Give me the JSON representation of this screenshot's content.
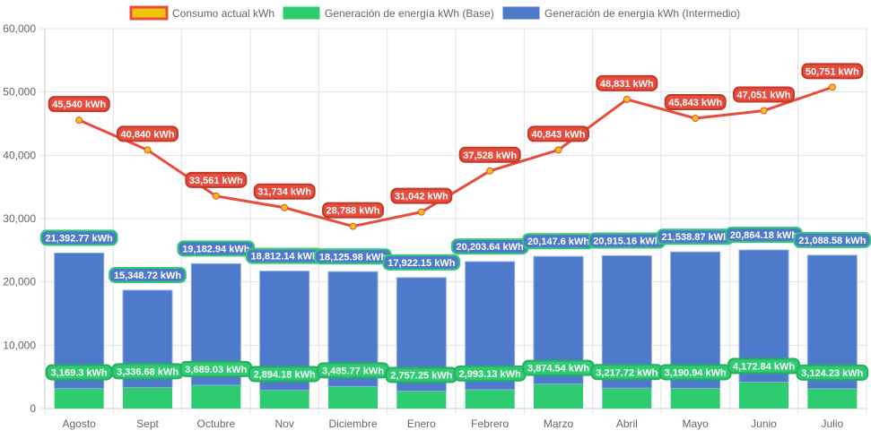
{
  "chart_data": {
    "type": "bar",
    "stacked": true,
    "categories": [
      "Agosto",
      "Sept",
      "Octubre",
      "Nov",
      "Diciembre",
      "Enero",
      "Febrero",
      "Marzo",
      "Abril",
      "Mayo",
      "Junio",
      "Julio"
    ],
    "series": [
      {
        "name": "Consumo actual kWh",
        "type": "line",
        "color": "#e74c3c",
        "point_color": "#f1c40f",
        "values": [
          45540,
          40840,
          33561,
          31734,
          28788,
          31042,
          37528,
          40843,
          48831,
          45843,
          47051,
          50751
        ],
        "labels": [
          "45,540 kWh",
          "40,840 kWh",
          "33,561 kWh",
          "31,734 kWh",
          "28,788 kWh",
          "31,042 kWh",
          "37,528 kWh",
          "40,843 kWh",
          "48,831 kWh",
          "45,843 kWh",
          "47,051 kWh",
          "50,751 kWh"
        ]
      },
      {
        "name": "Generación de energía kWh (Base)",
        "type": "bar",
        "color": "#2ecc71",
        "values": [
          3169.3,
          3336.68,
          3689.03,
          2894.18,
          3485.77,
          2757.25,
          2993.13,
          3874.54,
          3217.72,
          3190.94,
          4172.84,
          3124.23
        ],
        "labels": [
          "3,169.3 kWh",
          "3,336.68 kWh",
          "3,689.03 kWh",
          "2,894.18 kWh",
          "3,485.77 kWh",
          "2,757.25 kWh",
          "2,993.13 kWh",
          "3,874.54 kWh",
          "3,217.72 kWh",
          "3,190.94 kWh",
          "4,172.84 kWh",
          "3,124.23 kWh"
        ]
      },
      {
        "name": "Generación de energía kWh (Intermedio)",
        "type": "bar",
        "color": "#4e7acb",
        "values": [
          21392.77,
          15348.72,
          19182.94,
          18812.14,
          18125.98,
          17922.15,
          20203.64,
          20147.6,
          20915.16,
          21538.87,
          20864.18,
          21088.58
        ],
        "labels": [
          "21,392.77 kWh",
          "15,348.72 kWh",
          "19,182.94 kWh",
          "18,812.14 kWh",
          "18,125.98 kWh",
          "17,922.15 kWh",
          "20,203.64 kWh",
          "20,147.6 kWh",
          "20,915.16 kWh",
          "21,538.87 kWh",
          "20,864.18 kWh",
          "21,088.58 kWh"
        ]
      }
    ],
    "ylim": [
      0,
      60000
    ],
    "yticks": [
      "0",
      "10,000",
      "20,000",
      "30,000",
      "40,000",
      "50,000",
      "60,000"
    ],
    "grid": true,
    "legend": "top"
  }
}
